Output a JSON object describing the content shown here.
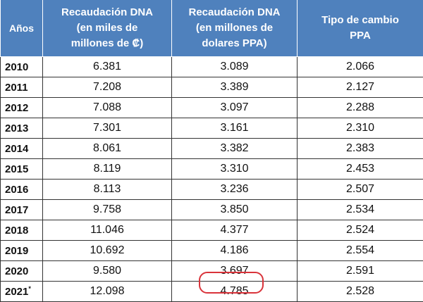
{
  "table": {
    "headers": {
      "years": "Años",
      "dna_colones": [
        "Recaudación  DNA",
        "(en miles de",
        "millones de ₡)"
      ],
      "dna_usd_ppa": [
        "Recaudación DNA",
        "(en millones de",
        "dolares PPA)"
      ],
      "exchange": [
        "Tipo de cambio",
        "PPA"
      ]
    },
    "rows": [
      {
        "year": "2010",
        "mark": "",
        "dna_colones": "6.381",
        "dna_usd_ppa": "3.089",
        "exchange": "2.066"
      },
      {
        "year": "2011",
        "mark": "",
        "dna_colones": "7.208",
        "dna_usd_ppa": "3.389",
        "exchange": "2.127"
      },
      {
        "year": "2012",
        "mark": "",
        "dna_colones": "7.088",
        "dna_usd_ppa": "3.097",
        "exchange": "2.288"
      },
      {
        "year": "2013",
        "mark": "",
        "dna_colones": "7.301",
        "dna_usd_ppa": "3.161",
        "exchange": "2.310"
      },
      {
        "year": "2014",
        "mark": "",
        "dna_colones": "8.061",
        "dna_usd_ppa": "3.382",
        "exchange": "2.383"
      },
      {
        "year": "2015",
        "mark": "",
        "dna_colones": "8.119",
        "dna_usd_ppa": "3.310",
        "exchange": "2.453"
      },
      {
        "year": "2016",
        "mark": "",
        "dna_colones": "8.113",
        "dna_usd_ppa": "3.236",
        "exchange": "2.507"
      },
      {
        "year": "2017",
        "mark": "",
        "dna_colones": "9.758",
        "dna_usd_ppa": "3.850",
        "exchange": "2.534"
      },
      {
        "year": "2018",
        "mark": "",
        "dna_colones": "11.046",
        "dna_usd_ppa": "4.377",
        "exchange": "2.524"
      },
      {
        "year": "2019",
        "mark": "",
        "dna_colones": "10.692",
        "dna_usd_ppa": "4.186",
        "exchange": "2.554"
      },
      {
        "year": "2020",
        "mark": "",
        "dna_colones": "9.580",
        "dna_usd_ppa": "3.697",
        "exchange": "2.591"
      },
      {
        "year": "2021",
        "mark": "*",
        "dna_colones": "12.098",
        "dna_usd_ppa": "4.785",
        "exchange": "2.528"
      }
    ]
  },
  "highlight": {
    "color": "#d9333a"
  }
}
